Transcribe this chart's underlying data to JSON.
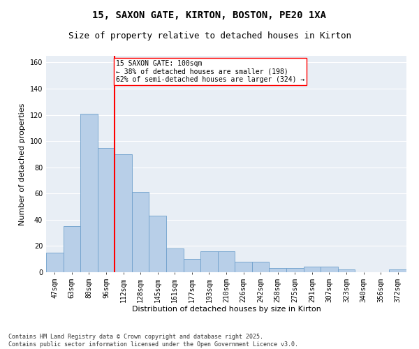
{
  "title": "15, SAXON GATE, KIRTON, BOSTON, PE20 1XA",
  "subtitle": "Size of property relative to detached houses in Kirton",
  "xlabel": "Distribution of detached houses by size in Kirton",
  "ylabel": "Number of detached properties",
  "categories": [
    "47sqm",
    "63sqm",
    "80sqm",
    "96sqm",
    "112sqm",
    "128sqm",
    "145sqm",
    "161sqm",
    "177sqm",
    "193sqm",
    "210sqm",
    "226sqm",
    "242sqm",
    "258sqm",
    "275sqm",
    "291sqm",
    "307sqm",
    "323sqm",
    "340sqm",
    "356sqm",
    "372sqm"
  ],
  "values": [
    15,
    35,
    121,
    95,
    90,
    61,
    43,
    18,
    10,
    16,
    16,
    8,
    8,
    3,
    3,
    4,
    4,
    2,
    0,
    0,
    2
  ],
  "bar_color": "#b8cfe8",
  "bar_edge_color": "#6fa0cc",
  "vline_color": "red",
  "annotation_text": "15 SAXON GATE: 100sqm\n← 38% of detached houses are smaller (198)\n62% of semi-detached houses are larger (324) →",
  "annotation_box_color": "white",
  "annotation_box_edge": "red",
  "ylim": [
    0,
    165
  ],
  "yticks": [
    0,
    20,
    40,
    60,
    80,
    100,
    120,
    140,
    160
  ],
  "bg_color": "#e8eef5",
  "footer": "Contains HM Land Registry data © Crown copyright and database right 2025.\nContains public sector information licensed under the Open Government Licence v3.0.",
  "title_fontsize": 10,
  "subtitle_fontsize": 9,
  "xlabel_fontsize": 8,
  "ylabel_fontsize": 8,
  "tick_fontsize": 7,
  "annotation_fontsize": 7,
  "footer_fontsize": 6
}
